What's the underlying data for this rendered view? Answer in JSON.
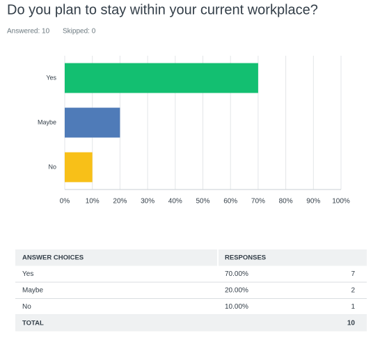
{
  "header": {
    "title": "Do you plan to stay within your current workplace?",
    "answered": "Answered: 10",
    "skipped": "Skipped: 0"
  },
  "chart_data": {
    "type": "bar",
    "orientation": "horizontal",
    "categories": [
      "Yes",
      "Maybe",
      "No"
    ],
    "values": [
      70,
      20,
      10
    ],
    "colors": [
      "#13bf71",
      "#4f7bb8",
      "#f8c018"
    ],
    "xlim": [
      0,
      100
    ],
    "xticks": [
      {
        "value": 0,
        "label": "0%"
      },
      {
        "value": 10,
        "label": "10%"
      },
      {
        "value": 20,
        "label": "20%"
      },
      {
        "value": 30,
        "label": "30%"
      },
      {
        "value": 40,
        "label": "40%"
      },
      {
        "value": 50,
        "label": "50%"
      },
      {
        "value": 60,
        "label": "60%"
      },
      {
        "value": 70,
        "label": "70%"
      },
      {
        "value": 80,
        "label": "80%"
      },
      {
        "value": 90,
        "label": "90%"
      },
      {
        "value": 100,
        "label": "100%"
      }
    ],
    "grid": true
  },
  "table": {
    "header": [
      "ANSWER CHOICES",
      "RESPONSES"
    ],
    "rows": [
      [
        "Yes",
        "70.00%",
        "7"
      ],
      [
        "Maybe",
        "20.00%",
        "2"
      ],
      [
        "No",
        "10.00%",
        "1"
      ]
    ],
    "total": [
      "TOTAL",
      "10"
    ]
  }
}
